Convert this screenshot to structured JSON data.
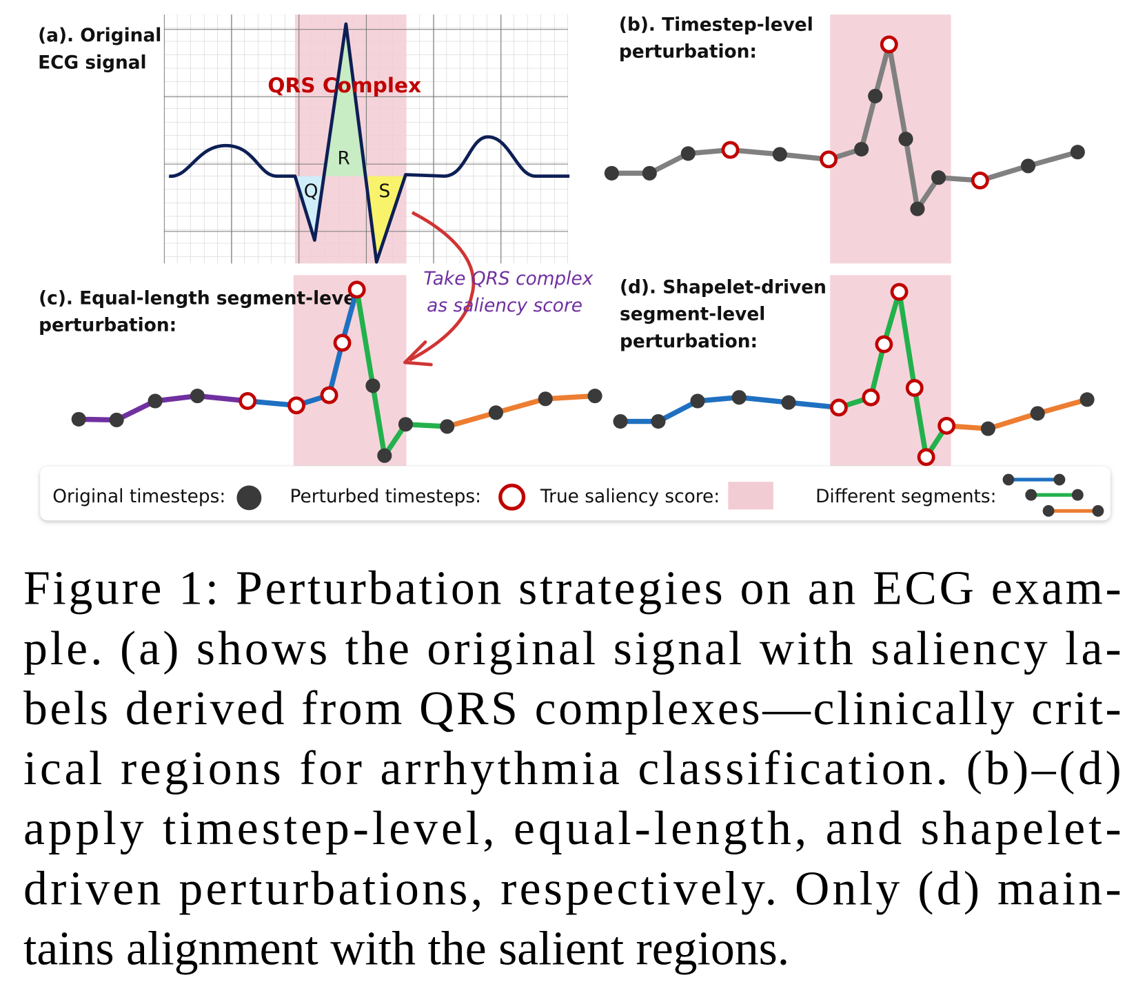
{
  "figure": {
    "panel_a": {
      "label": [
        "(a). Original",
        "ECG signal"
      ],
      "qrs_title": "QRS Complex",
      "waves": [
        "Q",
        "R",
        "S"
      ]
    },
    "panel_b": {
      "label": [
        "(b). Timestep-level",
        "perturbation:"
      ]
    },
    "panel_c": {
      "label": [
        "(c). Equal-length segment-level",
        "perturbation:"
      ]
    },
    "panel_d": {
      "label": [
        "(d). Shapelet-driven",
        "segment-level",
        "perturbation:"
      ]
    },
    "annotation": [
      "Take QRS complex",
      "as saliency score"
    ],
    "legend": {
      "original": "Original timesteps:",
      "perturbed": "Perturbed timesteps:",
      "saliency": "True saliency score:",
      "segments": "Different segments:"
    },
    "caption": {
      "lines": [
        "Figure 1: Perturbation strategies on an ECG exam-",
        "ple. (a) shows the original signal with saliency la-",
        "bels derived from QRS complexes—clinically crit-",
        "ical regions for arrhythmia classification. (b)–(d)",
        "apply timestep-level, equal-length, and shapelet-",
        "driven perturbations, respectively. Only (d) main-",
        "tains alignment with the salient regions."
      ]
    }
  }
}
